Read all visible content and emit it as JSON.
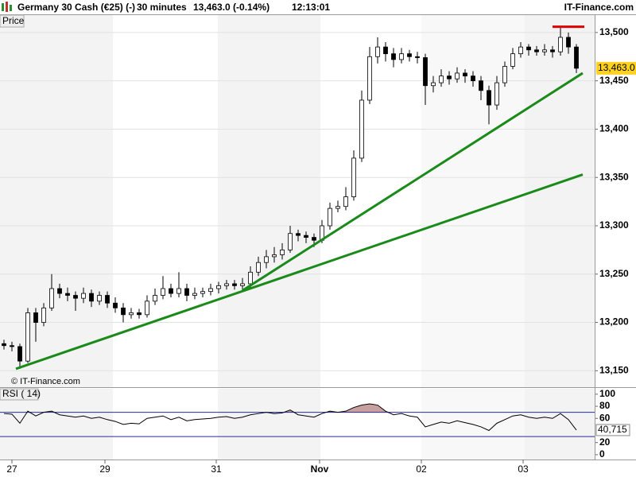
{
  "header": {
    "instrument": "Germany 30 Cash (€25) (-)",
    "timeframe": "30 minutes",
    "quote": "13,463.0 (-0.14%)",
    "time": "12:13:01",
    "brand": "IT-Finance.com"
  },
  "chart_data": [
    {
      "type": "candlestick",
      "label": "Price",
      "watermark": "© IT-Finance.com",
      "xlim": [
        -0.5,
        74.3
      ],
      "ylim": [
        13133,
        13518
      ],
      "yticks": [
        {
          "value": 13150,
          "label": "13,150"
        },
        {
          "value": 13200,
          "label": "13,200"
        },
        {
          "value": 13250,
          "label": "13,250"
        },
        {
          "value": 13300,
          "label": "13,300"
        },
        {
          "value": 13350,
          "label": "13,350"
        },
        {
          "value": 13400,
          "label": "13,400"
        },
        {
          "value": 13450,
          "label": "13,450"
        },
        {
          "value": 13500,
          "label": "13,500"
        }
      ],
      "up_color": "#ffffff",
      "down_color": "#000000",
      "grid": true,
      "open": [
        13178,
        13176,
        13175,
        13160,
        13210,
        13200,
        13215,
        13235,
        13230,
        13228,
        13225,
        13230,
        13222,
        13228,
        13220,
        13215,
        13208,
        13210,
        13208,
        13222,
        13228,
        13235,
        13230,
        13235,
        13228,
        13230,
        13232,
        13235,
        13238,
        13240,
        13238,
        13240,
        13252,
        13262,
        13268,
        13270,
        13275,
        13292,
        13290,
        13288,
        13285,
        13300,
        13318,
        13320,
        13330,
        13370,
        13430,
        13475,
        13485,
        13478,
        13472,
        13478,
        13475,
        13474,
        13445,
        13448,
        13455,
        13452,
        13458,
        13455,
        13450,
        13440,
        13425,
        13448,
        13465,
        13478,
        13485,
        13482,
        13480,
        13482,
        13480,
        13495,
        13485
      ],
      "high": [
        13182,
        13180,
        13178,
        13215,
        13215,
        13220,
        13250,
        13240,
        13236,
        13232,
        13236,
        13234,
        13232,
        13232,
        13226,
        13220,
        13215,
        13214,
        13228,
        13235,
        13248,
        13240,
        13252,
        13240,
        13236,
        13236,
        13240,
        13242,
        13244,
        13244,
        13246,
        13258,
        13268,
        13275,
        13278,
        13282,
        13300,
        13296,
        13294,
        13292,
        13306,
        13324,
        13326,
        13340,
        13378,
        13440,
        13485,
        13495,
        13490,
        13484,
        13484,
        13482,
        13480,
        13478,
        13455,
        13462,
        13460,
        13464,
        13462,
        13460,
        13455,
        13445,
        13455,
        13470,
        13484,
        13490,
        13488,
        13486,
        13488,
        13486,
        13505,
        13500,
        13488
      ],
      "low": [
        13172,
        13170,
        13152,
        13158,
        13180,
        13196,
        13212,
        13225,
        13222,
        13212,
        13220,
        13216,
        13218,
        13215,
        13210,
        13200,
        13204,
        13204,
        13205,
        13218,
        13224,
        13226,
        13226,
        13222,
        13224,
        13226,
        13228,
        13230,
        13234,
        13234,
        13232,
        13236,
        13248,
        13256,
        13262,
        13265,
        13272,
        13284,
        13282,
        13278,
        13282,
        13296,
        13314,
        13316,
        13326,
        13366,
        13426,
        13468,
        13470,
        13464,
        13468,
        13470,
        13468,
        13425,
        13438,
        13444,
        13446,
        13448,
        13448,
        13444,
        13430,
        13405,
        13420,
        13444,
        13462,
        13474,
        13476,
        13476,
        13476,
        13474,
        13476,
        13478,
        13458
      ],
      "close": [
        13176,
        13175,
        13160,
        13210,
        13200,
        13215,
        13235,
        13230,
        13228,
        13225,
        13230,
        13222,
        13228,
        13220,
        13215,
        13208,
        13210,
        13208,
        13222,
        13228,
        13235,
        13230,
        13235,
        13228,
        13230,
        13232,
        13235,
        13238,
        13240,
        13238,
        13240,
        13252,
        13262,
        13268,
        13270,
        13275,
        13292,
        13290,
        13288,
        13285,
        13300,
        13318,
        13320,
        13330,
        13370,
        13430,
        13475,
        13485,
        13478,
        13472,
        13478,
        13475,
        13474,
        13445,
        13448,
        13455,
        13452,
        13458,
        13455,
        13450,
        13440,
        13425,
        13448,
        13465,
        13478,
        13485,
        13482,
        13480,
        13482,
        13480,
        13495,
        13485,
        13463
      ],
      "last": {
        "value": 13463,
        "label": "13,463.0"
      },
      "lines": [
        {
          "color": "#1a8a1a",
          "x": [
            1.5,
            72.8
          ],
          "y": [
            13152,
            13353
          ]
        },
        {
          "color": "#1a8a1a",
          "x": [
            30,
            72.8
          ],
          "y": [
            13233,
            13458
          ]
        },
        {
          "color": "#e00000",
          "x": [
            69,
            73
          ],
          "y": [
            13506,
            13506
          ]
        }
      ]
    },
    {
      "type": "line",
      "label": "RSI ( 14)",
      "color": "#000000",
      "xlim": [
        -0.5,
        74.3
      ],
      "ylim": [
        -8,
        109
      ],
      "yticks": [
        0,
        20,
        60,
        80,
        100
      ],
      "levels": [
        70,
        30
      ],
      "level_color": "#2a2a9a",
      "overbought_fill": "#c9a0a0",
      "xticks": [
        {
          "value": 1,
          "label": "27"
        },
        {
          "value": 12.7,
          "label": "29"
        },
        {
          "value": 26.7,
          "label": "31"
        },
        {
          "value": 39.7,
          "label": "Nov"
        },
        {
          "value": 52.5,
          "label": "02"
        },
        {
          "value": 65.3,
          "label": "03"
        }
      ],
      "values": [
        68,
        67,
        52,
        72,
        64,
        70,
        72,
        66,
        64,
        62,
        64,
        60,
        62,
        58,
        55,
        50,
        52,
        51,
        60,
        62,
        64,
        58,
        62,
        56,
        58,
        59,
        60,
        62,
        63,
        60,
        62,
        66,
        68,
        70,
        68,
        69,
        74,
        66,
        64,
        62,
        68,
        72,
        70,
        72,
        78,
        82,
        84,
        82,
        72,
        66,
        68,
        64,
        62,
        46,
        50,
        54,
        52,
        56,
        53,
        50,
        46,
        40,
        52,
        58,
        64,
        66,
        62,
        60,
        62,
        60,
        68,
        58,
        40.715
      ],
      "last": {
        "value": 40.715,
        "label": "40,715"
      }
    }
  ]
}
